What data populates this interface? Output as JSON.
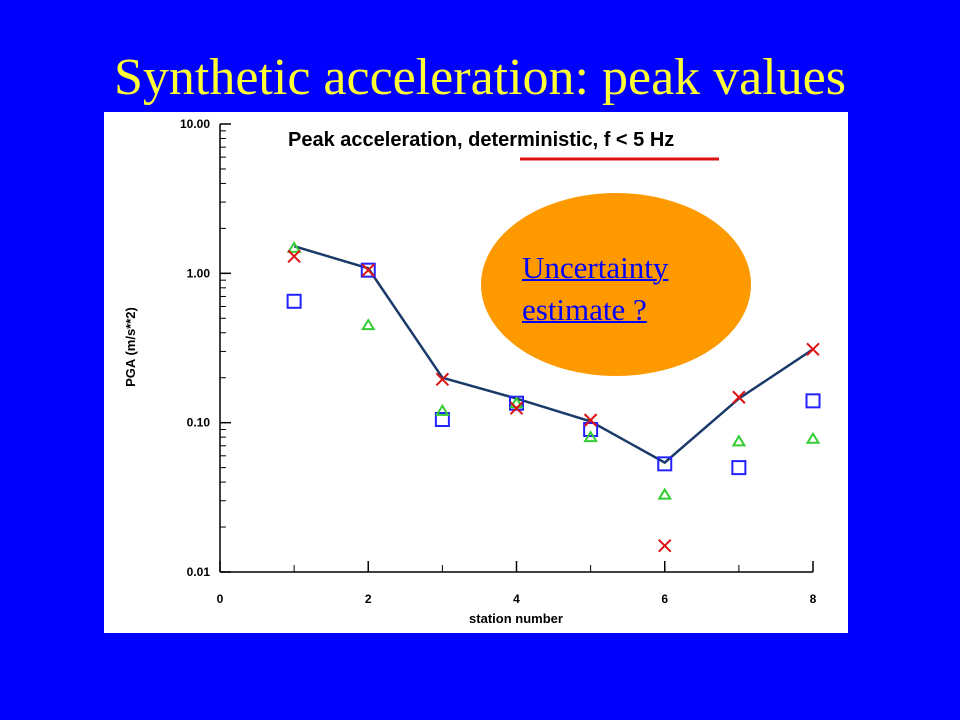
{
  "slide": {
    "title": "Synthetic acceleration: peak values"
  },
  "callout": {
    "line1": "Uncertainty",
    "line2": "estimate ?",
    "color": "#ff9900",
    "text_color": "#0000ff"
  },
  "colors": {
    "background": "#0000ff",
    "title": "#ffff33",
    "line": "#1a3a6a",
    "square": "#2222ff",
    "triangle": "#33cc33",
    "cross": "#dd1111",
    "underline": "#dd1111"
  },
  "chart_data": {
    "type": "scatter",
    "title": "Peak acceleration, deterministic, f < 5 Hz",
    "xlabel": "station number",
    "ylabel": "PGA (m/s**2)",
    "xlim": [
      0,
      8
    ],
    "ylim": [
      0.01,
      10
    ],
    "yscale": "log",
    "x_ticks": [
      0,
      2,
      4,
      6,
      8
    ],
    "y_ticks": [
      0.01,
      0.1,
      1,
      10
    ],
    "y_tick_labels": [
      "0.01",
      "0.10",
      "1.00",
      "10.00"
    ],
    "grid": false,
    "series": [
      {
        "marker": "line",
        "x": [
          1,
          2,
          3,
          4,
          5,
          6,
          7,
          8
        ],
        "y": [
          1.52,
          1.08,
          0.2,
          0.145,
          0.102,
          0.054,
          0.145,
          0.31
        ]
      },
      {
        "marker": "square",
        "x": [
          1,
          2,
          3,
          4,
          5,
          6,
          7,
          8
        ],
        "y": [
          0.65,
          1.05,
          0.105,
          0.135,
          0.09,
          0.053,
          0.05,
          0.14
        ]
      },
      {
        "marker": "triangle",
        "x": [
          1,
          2,
          3,
          4,
          5,
          6,
          7,
          8
        ],
        "y": [
          1.48,
          0.45,
          0.12,
          0.135,
          0.08,
          0.033,
          0.075,
          0.078
        ]
      },
      {
        "marker": "cross",
        "x": [
          1,
          2,
          3,
          4,
          5,
          6,
          7,
          8
        ],
        "y": [
          1.3,
          1.05,
          0.195,
          0.125,
          0.104,
          0.015,
          0.148,
          0.31
        ]
      }
    ]
  }
}
